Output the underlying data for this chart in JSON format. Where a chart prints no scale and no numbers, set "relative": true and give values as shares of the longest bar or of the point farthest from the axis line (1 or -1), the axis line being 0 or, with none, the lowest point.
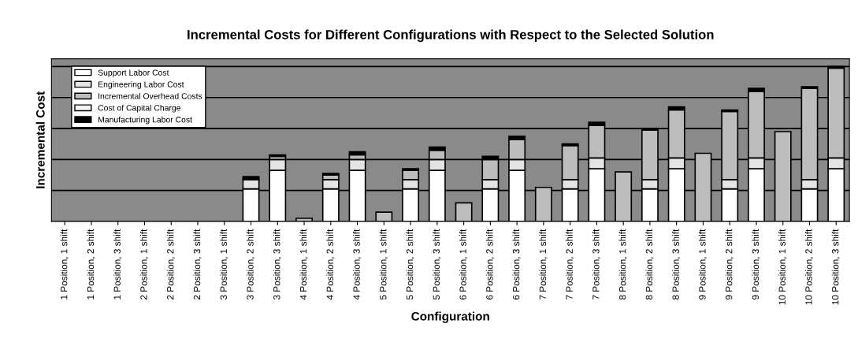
{
  "chart_data": {
    "type": "bar",
    "stacked": true,
    "relative": true,
    "title": "Incremental Costs for Different Configurations with Respect to the Selected Solution",
    "xlabel": "Configuration",
    "ylabel": "Incremental Cost",
    "categories": [
      "1 Position, 1 shift",
      "1 Position, 2 shift",
      "1 Position, 3 shift",
      "2 Position, 1 shift",
      "2 Position, 2 shift",
      "2 Position, 3 shift",
      "3 Position, 1 shift",
      "3 Position, 2 shift",
      "3 Position, 3 shift",
      "4 Position, 1 shift",
      "4 Position, 2 shift",
      "4 Position, 3 shift",
      "5 Position, 1 shift",
      "5 Position, 2 shift",
      "5 Position, 3 shift",
      "6 Position, 1 shift",
      "6 Position, 2 shift",
      "6 Position, 3 shift",
      "7 Position, 1 shift",
      "7 Position, 2 shift",
      "7 Position, 3 shift",
      "8 Position, 1 shift",
      "8 Position, 2 shift",
      "8 Position, 3 shift",
      "9 Position, 1 shift",
      "9 Position, 2 shift",
      "9 Position, 3 shift",
      "10 Position, 1 shift",
      "10 Position, 2 shift",
      "10 Position, 3 shift"
    ],
    "series": [
      {
        "name": "Support Labor Cost",
        "color": "#ffffff",
        "values": [
          0,
          0,
          0,
          0,
          0,
          0,
          0,
          0.21,
          0.33,
          0,
          0.21,
          0.33,
          0,
          0.21,
          0.33,
          0,
          0.21,
          0.33,
          0,
          0.21,
          0.34,
          0,
          0.21,
          0.34,
          0,
          0.21,
          0.34,
          0,
          0.21,
          0.34
        ]
      },
      {
        "name": "Engineering Labor Cost",
        "color": "#e4e4e4",
        "values": [
          0,
          0,
          0,
          0,
          0,
          0,
          0,
          0.06,
          0.07,
          0,
          0.06,
          0.07,
          0,
          0.06,
          0.07,
          0,
          0.06,
          0.07,
          0,
          0.06,
          0.07,
          0,
          0.06,
          0.07,
          0,
          0.06,
          0.07,
          0,
          0.06,
          0.07
        ]
      },
      {
        "name": "Incremental Overhead Costs",
        "color": "#bdbdbd",
        "values": [
          0,
          0,
          0,
          0,
          0,
          0,
          0,
          0,
          0.02,
          0.02,
          0.03,
          0.03,
          0.06,
          0.06,
          0.06,
          0.12,
          0.13,
          0.13,
          0.22,
          0.22,
          0.21,
          0.32,
          0.32,
          0.31,
          0.44,
          0.44,
          0.43,
          0.58,
          0.59,
          0.58
        ]
      },
      {
        "name": "Cost of Capital Charge",
        "color": "#f4f4f4",
        "values": [
          0,
          0,
          0,
          0,
          0,
          0,
          0,
          0,
          0,
          0,
          0,
          0,
          0,
          0,
          0,
          0,
          0,
          0,
          0,
          0,
          0,
          0,
          0,
          0,
          0,
          0,
          0,
          0,
          0,
          0
        ]
      },
      {
        "name": "Manufacturing Labor Cost",
        "color": "#000000",
        "values": [
          0,
          0,
          0,
          0,
          0,
          0,
          0,
          0.02,
          0.01,
          0,
          0.01,
          0.02,
          0,
          0.01,
          0.02,
          0,
          0.02,
          0.02,
          0,
          0.01,
          0.02,
          0,
          0.01,
          0.02,
          0,
          0.01,
          0.02,
          0,
          0.01,
          0.01
        ]
      }
    ],
    "grid": "y",
    "legend": "top left"
  }
}
